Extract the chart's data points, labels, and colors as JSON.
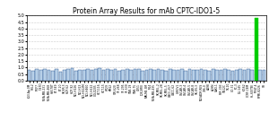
{
  "title": "Protein Array Results for mAb CPTC-IDO1-5",
  "ylim": [
    0.0,
    5.0
  ],
  "yticks": [
    0.0,
    0.5,
    1.0,
    1.5,
    2.0,
    2.5,
    3.0,
    3.5,
    4.0,
    4.5,
    5.0
  ],
  "cell_lines": [
    "LG3-Ap-0M",
    "HEL2",
    "MCF7",
    "T-47D",
    "MDA-MB-231",
    "MDA-MB-468",
    "HS578T",
    "BT-549",
    "BT-20",
    "SK-BR-3",
    "HOP-62",
    "HOP-92",
    "NCI-H226",
    "NCI-H23",
    "NCI-H322M",
    "NCI-H460",
    "NCI-H522",
    "COLO205",
    "HCT-116",
    "HCT-15",
    "HT29",
    "KM12",
    "SW-620",
    "SF-268",
    "SF-295",
    "SF-539",
    "SNB-19",
    "SNB-75",
    "U251",
    "LOX-IMVI",
    "MALME-3M",
    "M14",
    "MDA-MB-435",
    "SK-MEL-2",
    "SK-MEL-28",
    "SK-MEL-5",
    "UACC-257",
    "UACC-62",
    "IGROV1",
    "OVCAR-3",
    "OVCAR-4",
    "OVCAR-5",
    "OVCAR-8",
    "SK-OV-3",
    "NCI/ADR-RES",
    "786-0",
    "A498",
    "ACHN",
    "CAKI-1",
    "RXF-393",
    "SN12C",
    "TK-10",
    "UO-31",
    "PC-3",
    "DU-145",
    "K-562",
    "CCRF-CEM",
    "HL-60(TB)",
    "MOLT-4",
    "RPMI-8226",
    "SR"
  ],
  "values": [
    0.82,
    0.78,
    0.9,
    0.85,
    0.88,
    0.8,
    0.75,
    0.92,
    0.7,
    0.83,
    0.88,
    0.95,
    0.78,
    0.85,
    0.8,
    0.9,
    0.82,
    0.88,
    0.95,
    0.85,
    0.9,
    0.8,
    0.88,
    0.78,
    0.85,
    0.9,
    0.82,
    0.88,
    0.92,
    0.78,
    0.85,
    0.9,
    0.8,
    0.88,
    0.82,
    0.78,
    0.9,
    0.85,
    0.8,
    0.88,
    0.75,
    0.9,
    0.85,
    0.8,
    0.88,
    0.82,
    0.78,
    0.9,
    0.85,
    0.8,
    0.88,
    0.82,
    0.78,
    0.85,
    0.9,
    0.8,
    0.88,
    0.82,
    4.82,
    0.8,
    0.85
  ],
  "bar_colors_default": "#b8d0e8",
  "bar_colors_outline": "#1a4a8a",
  "bar_color_high": "#00cc00",
  "high_threshold": 2.0,
  "background_color": "#ffffff",
  "title_fontsize": 5.5,
  "tick_fontsize": 3.5,
  "label_fontsize": 2.2,
  "grid_color": "#aaaaaa",
  "dotted_color": "#888888"
}
